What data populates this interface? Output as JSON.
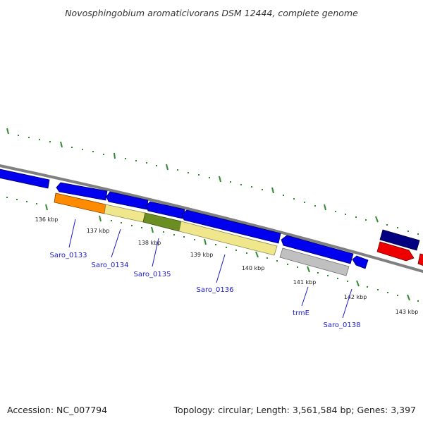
{
  "title": "Novosphingobium aromaticivorans DSM 12444, complete genome",
  "footer": {
    "accession": "Accession: NC_007794",
    "summary": "Topology: circular; Length: 3,561,584 bp; Genes: 3,397"
  },
  "colors": {
    "backbone": "#808080",
    "cds_forward": "#0000ee",
    "cds_forward_dark": "#000080",
    "cds_reverse_red": "#ee0000",
    "tick": "#2e8b2e",
    "label": "#1a1acc",
    "cog_orange": "#ff8c00",
    "cog_khaki": "#f0e68c",
    "cog_olive": "#6b8e23",
    "cog_grey": "#c0c0c0"
  },
  "ticks": [
    {
      "label": "136 kbp"
    },
    {
      "label": "137 kbp"
    },
    {
      "label": "138 kbp"
    },
    {
      "label": "139 kbp"
    },
    {
      "label": "140 kbp"
    },
    {
      "label": "141 kbp"
    },
    {
      "label": "142 kbp"
    },
    {
      "label": "143 kbp"
    }
  ],
  "gene_labels": [
    {
      "text": "Saro_0133"
    },
    {
      "text": "Saro_0134"
    },
    {
      "text": "Saro_0135"
    },
    {
      "text": "Saro_0136"
    },
    {
      "text": "trmE"
    },
    {
      "text": "Saro_0138"
    }
  ]
}
